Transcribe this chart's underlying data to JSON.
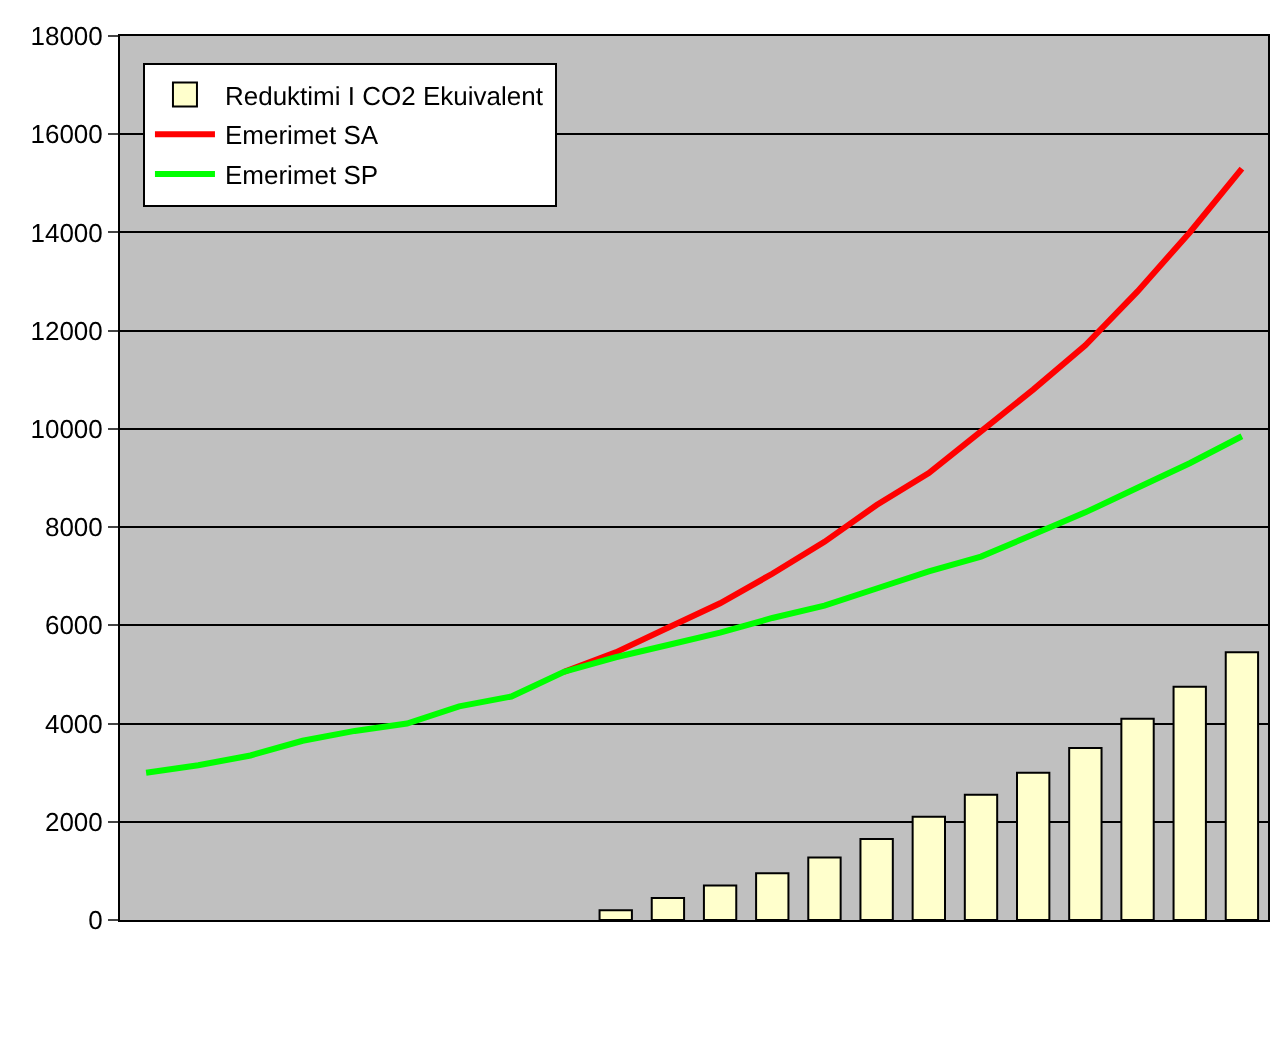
{
  "chart_data": {
    "type": "bar",
    "categories": [
      null,
      null,
      null,
      null,
      null,
      null,
      null,
      null,
      null,
      null,
      null,
      null,
      null,
      null,
      null,
      null,
      null,
      null,
      null,
      null,
      null,
      null
    ],
    "series": [
      {
        "name": "Reduktimi I CO2 Ekuivalent",
        "color": "#ffffcc",
        "values": [
          null,
          null,
          null,
          null,
          null,
          null,
          null,
          null,
          null,
          200,
          450,
          700,
          950,
          1270,
          1650,
          2100,
          2550,
          3000,
          3500,
          4100,
          4750,
          5450
        ]
      },
      {
        "name": "Emerimet SA",
        "type": "line",
        "color": "#ff0000",
        "values": [
          null,
          null,
          null,
          null,
          null,
          null,
          null,
          null,
          5050,
          5450,
          5950,
          6450,
          7050,
          7700,
          8450,
          9100,
          9950,
          10800,
          11700,
          12800,
          14000,
          15300
        ]
      },
      {
        "name": "Emerimet SP",
        "type": "line",
        "color": "#00ff00",
        "values": [
          3000,
          3150,
          3350,
          3650,
          3850,
          4000,
          4350,
          4550,
          5050,
          5350,
          5600,
          5850,
          6150,
          6400,
          6750,
          7100,
          7400,
          7850,
          8300,
          8800,
          9300,
          9850
        ]
      }
    ],
    "ylim": [
      0,
      18000
    ],
    "yticks": [
      0,
      2000,
      4000,
      6000,
      8000,
      10000,
      12000,
      14000,
      16000,
      18000
    ],
    "grid": "y",
    "legend": "top left",
    "tick_labels": "y"
  }
}
